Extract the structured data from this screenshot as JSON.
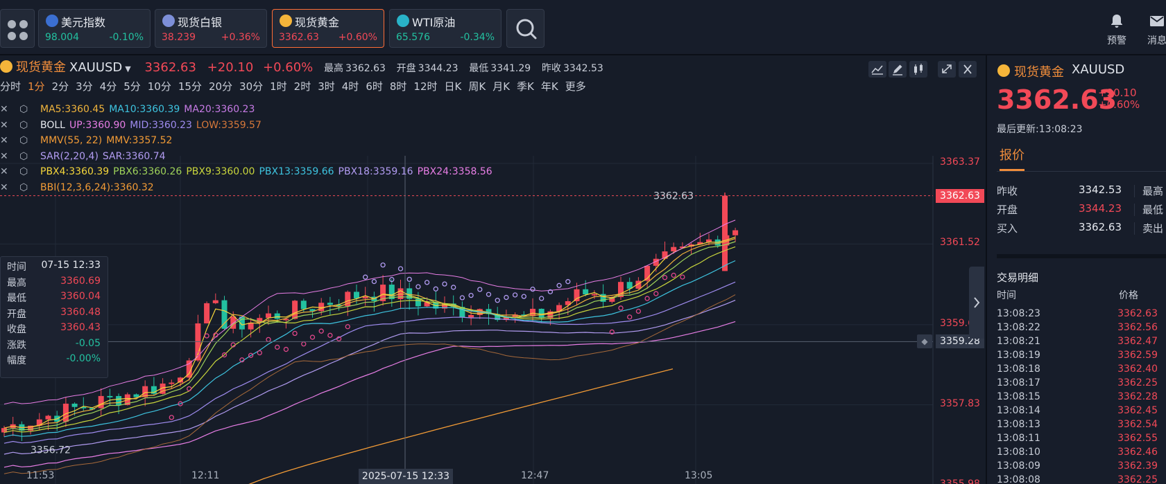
{
  "top_tickers": [
    {
      "name": "美元指数",
      "price": "98.004",
      "change": "-0.10%",
      "dir": "down",
      "flag_color": "#3b6fd1"
    },
    {
      "name": "现货白银",
      "price": "38.239",
      "change": "+0.36%",
      "dir": "up",
      "flag_color": "#7d8fd8"
    },
    {
      "name": "现货黄金",
      "price": "3362.63",
      "change": "+0.60%",
      "dir": "up",
      "flag_color": "#f5b53a"
    },
    {
      "name": "WTI原油",
      "price": "65.576",
      "change": "-0.34%",
      "dir": "down",
      "flag_color": "#29b3c8"
    }
  ],
  "top_actions": {
    "alert_label": "预警",
    "message_label": "消息"
  },
  "chart_header": {
    "name": "现货黄金",
    "code": "XAUUSD",
    "price": "3362.63",
    "change": "+20.10",
    "change_pct": "+0.60%",
    "high_label": "最高",
    "high": "3362.63",
    "open_label": "开盘",
    "open": "3344.23",
    "low_label": "最低",
    "low": "3341.29",
    "prev_label": "昨收",
    "prev": "3342.53"
  },
  "periods": [
    "分时",
    "1分",
    "2分",
    "3分",
    "4分",
    "5分",
    "10分",
    "15分",
    "20分",
    "30分",
    "1时",
    "2时",
    "3时",
    "4时",
    "6时",
    "8时",
    "12时",
    "日K",
    "周K",
    "月K",
    "季K",
    "年K",
    "更多"
  ],
  "active_period": "1分",
  "indicators": [
    {
      "items": [
        {
          "t": "MA5:3360.45",
          "c": "#f0b43c"
        },
        {
          "t": "MA10:3360.39",
          "c": "#3ec4e0"
        },
        {
          "t": "MA20:3360.23",
          "c": "#c77be6"
        }
      ]
    },
    {
      "items": [
        {
          "t": "BOLL",
          "c": "#e6e9ef"
        },
        {
          "t": "UP:3360.90",
          "c": "#e87ee6"
        },
        {
          "t": "MID:3360.23",
          "c": "#9f8cf0"
        },
        {
          "t": "LOW:3359.57",
          "c": "#d6783a"
        }
      ]
    },
    {
      "items": [
        {
          "t": "MMV(55, 22)",
          "c": "#f29b36"
        },
        {
          "t": "MMV:3357.52",
          "c": "#f29b36"
        }
      ]
    },
    {
      "items": [
        {
          "t": "SAR(2,20,4)",
          "c": "#b29cf2"
        },
        {
          "t": "SAR:3360.74",
          "c": "#b29cf2"
        }
      ]
    },
    {
      "items": [
        {
          "t": "PBX4:3360.39",
          "c": "#f5d63b"
        },
        {
          "t": "PBX6:3360.26",
          "c": "#9fd35a"
        },
        {
          "t": "PBX9:3360.00",
          "c": "#c9d63c"
        },
        {
          "t": "PBX13:3359.66",
          "c": "#3ec4e0"
        },
        {
          "t": "PBX18:3359.16",
          "c": "#b29cf2"
        },
        {
          "t": "PBX24:3358.56",
          "c": "#e87ee6"
        }
      ]
    },
    {
      "items": [
        {
          "t": "BBI(12,3,6,24):3360.32",
          "c": "#f29b36"
        }
      ]
    }
  ],
  "tooltip": [
    {
      "k": "时间",
      "v": "07-15 12:33",
      "dir": "neutral"
    },
    {
      "k": "最高",
      "v": "3360.69",
      "dir": "up"
    },
    {
      "k": "最低",
      "v": "3360.04",
      "dir": "up"
    },
    {
      "k": "开盘",
      "v": "3360.48",
      "dir": "up"
    },
    {
      "k": "收盘",
      "v": "3360.43",
      "dir": "up"
    },
    {
      "k": "涨跌",
      "v": "-0.05",
      "dir": "down"
    },
    {
      "k": "幅度",
      "v": "-0.00%",
      "dir": "down"
    }
  ],
  "price_axis": [
    "3363.37",
    "3361.52",
    "3359.67",
    "3357.83",
    "3355.98"
  ],
  "price_axis_values": [
    3363.37,
    3361.52,
    3359.67,
    3357.83,
    3355.98
  ],
  "current_price_tag": "3362.63",
  "current_price_value": 3362.63,
  "crosshair_price_tag": "3359.28",
  "crosshair_price_value": 3359.28,
  "crosshair_time_label": "2025-07-15 12:33",
  "high_marker": "3362.63",
  "low_marker": "3356.72",
  "time_axis": [
    "11:53",
    "12:11",
    "12:47",
    "13:05"
  ],
  "side": {
    "name": "现货黄金",
    "code": "XAUUSD",
    "price": "3362.63",
    "change": "+20.10",
    "change_pct": "+0.60%",
    "updated": "最后更新:13:08:23",
    "tab": "报价",
    "quotes": [
      {
        "k": "昨收",
        "v": "3342.53",
        "dir": "neutral",
        "k2": "最高"
      },
      {
        "k": "开盘",
        "v": "3344.23",
        "dir": "up",
        "k2": "最低"
      },
      {
        "k": "买入",
        "v": "3362.63",
        "dir": "neutral",
        "k2": "卖出"
      }
    ],
    "trade_title": "交易明细",
    "trade_h_time": "时间",
    "trade_h_price": "价格",
    "trades": [
      {
        "t": "13:08:23",
        "p": "3362.63"
      },
      {
        "t": "13:08:22",
        "p": "3362.56"
      },
      {
        "t": "13:08:21",
        "p": "3362.47"
      },
      {
        "t": "13:08:19",
        "p": "3362.59"
      },
      {
        "t": "13:08:18",
        "p": "3362.40"
      },
      {
        "t": "13:08:17",
        "p": "3362.25"
      },
      {
        "t": "13:08:15",
        "p": "3362.28"
      },
      {
        "t": "13:08:14",
        "p": "3362.45"
      },
      {
        "t": "13:08:13",
        "p": "3362.54"
      },
      {
        "t": "13:08:11",
        "p": "3362.55"
      },
      {
        "t": "13:08:10",
        "p": "3362.46"
      },
      {
        "t": "13:08:09",
        "p": "3362.39"
      },
      {
        "t": "13:08:08",
        "p": "3362.25"
      }
    ]
  },
  "colors": {
    "up": "#f24957",
    "down": "#23c1a0",
    "accent": "#f08d3b"
  }
}
